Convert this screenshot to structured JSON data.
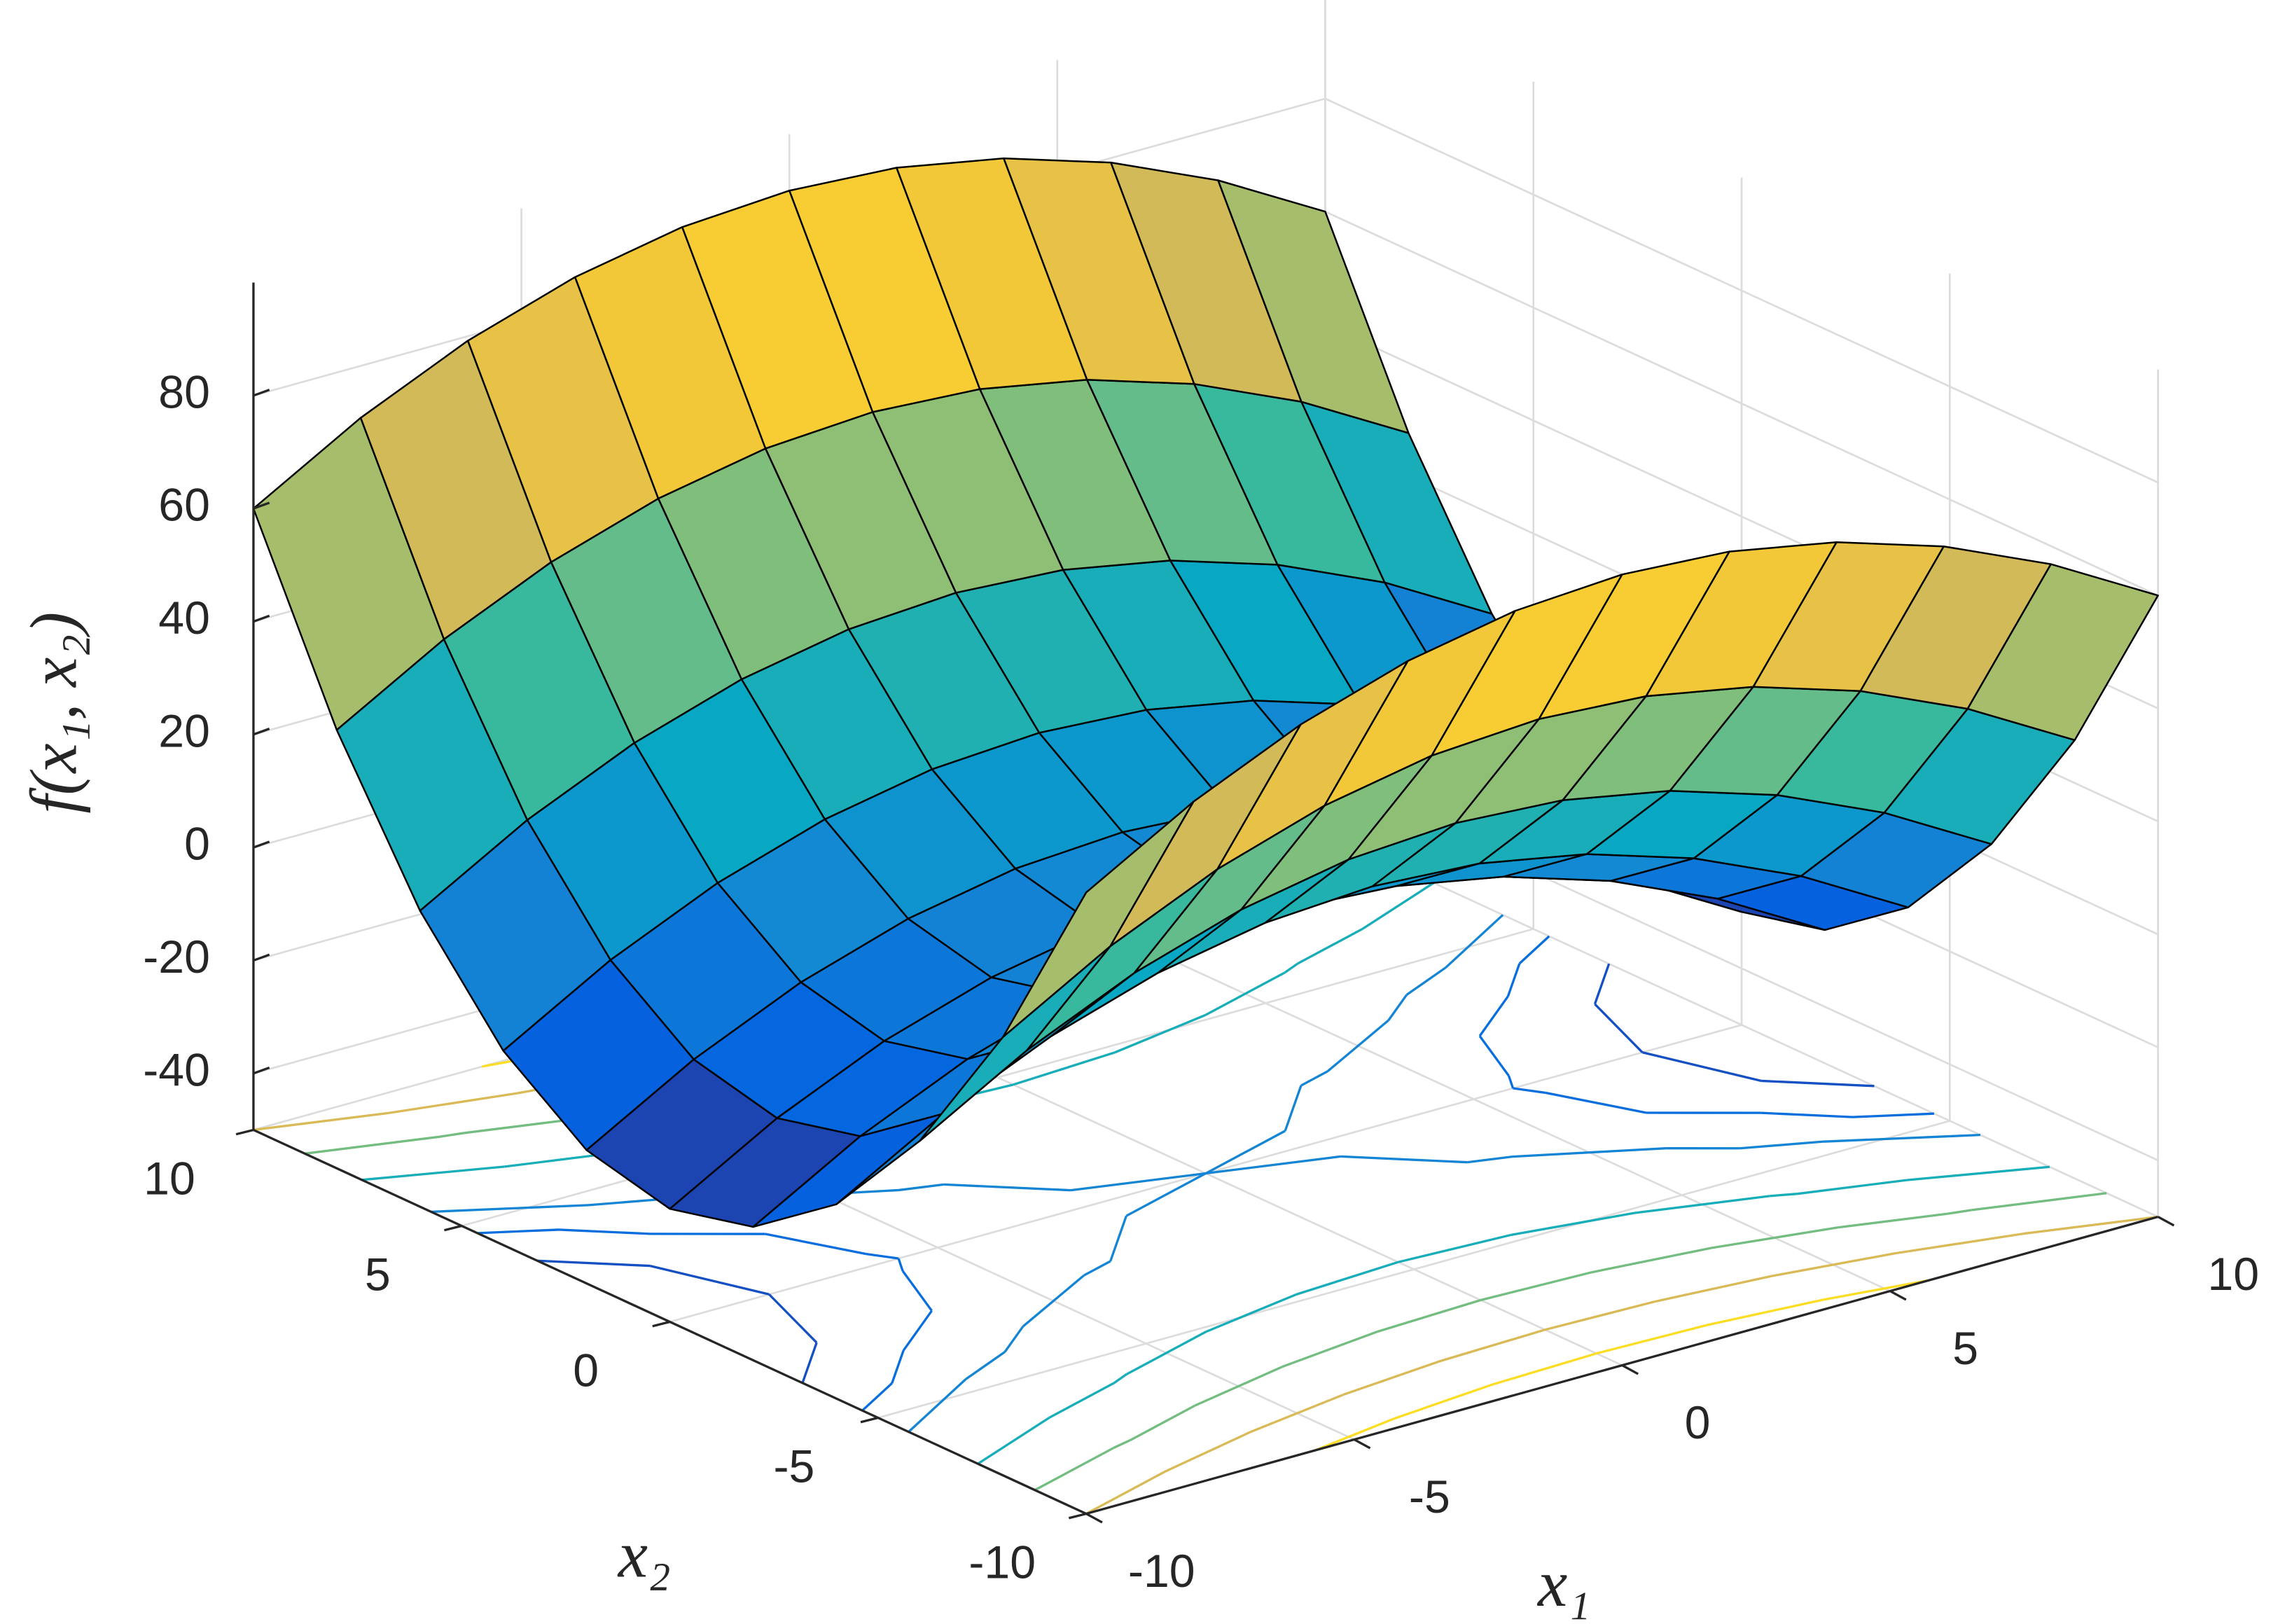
{
  "chart_data": {
    "type": "surface",
    "x_label": "x₁",
    "y_label": "x₂",
    "z_label": "f(x₁, x₂)",
    "x": [
      -10,
      -8,
      -6,
      -4,
      -2,
      0,
      2,
      4,
      6,
      8,
      10
    ],
    "y": [
      -10,
      -8,
      -6,
      -4,
      -2,
      0,
      2,
      4,
      6,
      8,
      10
    ],
    "z": [
      [
        60,
        70.8,
        79.2,
        85.2,
        88.8,
        90,
        88.8,
        85.2,
        79.2,
        70.8,
        60
      ],
      [
        27.6,
        38.4,
        46.8,
        52.8,
        56.4,
        57.6,
        56.4,
        52.8,
        46.8,
        38.4,
        27.6
      ],
      [
        2.4,
        13.2,
        21.6,
        27.6,
        31.2,
        32.4,
        31.2,
        27.6,
        21.6,
        13.2,
        2.4
      ],
      [
        -15.6,
        -4.8,
        3.6,
        9.6,
        13.2,
        14.4,
        13.2,
        9.6,
        3.6,
        -4.8,
        -15.6
      ],
      [
        -26.4,
        -15.6,
        -7.2,
        -1.2,
        2.4,
        3.6,
        2.4,
        -1.2,
        -7.2,
        -15.6,
        -26.4
      ],
      [
        -30,
        -19.2,
        -10.8,
        -4.8,
        -1.2,
        0,
        -1.2,
        -4.8,
        -10.8,
        -19.2,
        -30
      ],
      [
        -26.4,
        -15.6,
        -7.2,
        -1.2,
        2.4,
        3.6,
        2.4,
        -1.2,
        -7.2,
        -15.6,
        -26.4
      ],
      [
        -15.6,
        -4.8,
        3.6,
        9.6,
        13.2,
        14.4,
        13.2,
        9.6,
        3.6,
        -4.8,
        -15.6
      ],
      [
        2.4,
        13.2,
        21.6,
        27.6,
        31.2,
        32.4,
        31.2,
        27.6,
        21.6,
        13.2,
        2.4
      ],
      [
        27.6,
        38.4,
        46.8,
        52.8,
        56.4,
        57.6,
        56.4,
        52.8,
        46.8,
        38.4,
        27.6
      ],
      [
        60,
        70.8,
        79.2,
        85.2,
        88.8,
        90,
        88.8,
        85.2,
        79.2,
        70.8,
        60
      ]
    ],
    "contour_levels": [
      -20,
      -10,
      0,
      20,
      40,
      60,
      80
    ],
    "colormap": "parula",
    "xlim": [
      -10,
      10
    ],
    "ylim": [
      -10,
      10
    ],
    "zlim": [
      -50,
      100
    ],
    "xticks": [
      -10,
      -5,
      0,
      5,
      10
    ],
    "yticks": [
      -10,
      -5,
      0,
      5,
      10
    ],
    "zticks": [
      -40,
      -20,
      0,
      20,
      40,
      60,
      80
    ],
    "grid": true
  }
}
